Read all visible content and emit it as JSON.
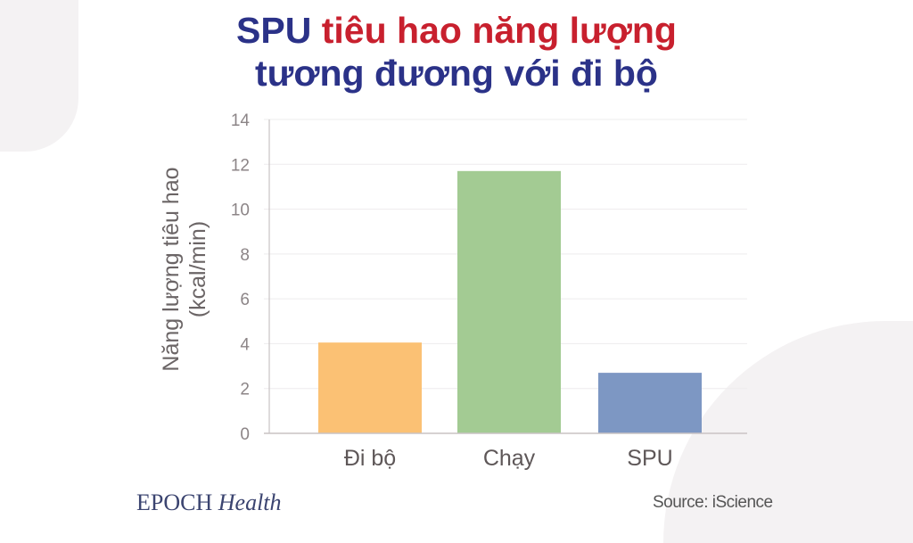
{
  "title": {
    "line1_a": "SPU",
    "line1_b": "tiêu hao năng lượng",
    "line2": "tương đương với đi bộ"
  },
  "colors": {
    "navy": "#2b3288",
    "red": "#c8202e"
  },
  "chart_data": {
    "type": "bar",
    "categories": [
      "Đi bộ",
      "Chạy",
      "SPU"
    ],
    "values": [
      4.05,
      11.7,
      2.7
    ],
    "bar_colors": [
      "#fbc174",
      "#a3cb93",
      "#7d97c3"
    ],
    "ylabel_line1": "Năng lượng tiêu hao",
    "ylabel_line2": "(kcal/min)",
    "xlabel": "",
    "ylim": [
      0,
      14
    ],
    "yticks": [
      0,
      2,
      4,
      6,
      8,
      10,
      12,
      14
    ],
    "grid": true,
    "legend": "none"
  },
  "footer": {
    "logo_a": "EPOCH",
    "logo_b": "Health",
    "source": "Source: iScience"
  }
}
